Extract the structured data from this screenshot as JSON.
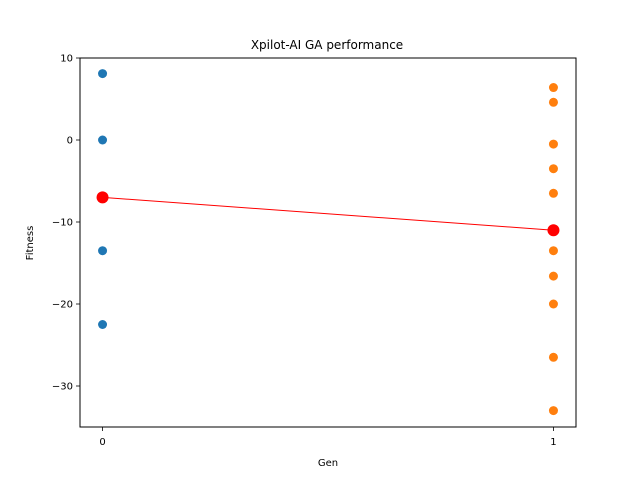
{
  "chart_data": {
    "type": "scatter",
    "title": "Xpilot-AI GA performance",
    "xlabel": "Gen",
    "ylabel": "Fitness",
    "xlim": [
      -0.05,
      1.05
    ],
    "ylim": [
      -35,
      10
    ],
    "x_ticks": [
      0,
      1
    ],
    "x_tick_labels": [
      "0",
      "1"
    ],
    "y_ticks": [
      10,
      0,
      -10,
      -20,
      -30
    ],
    "y_tick_labels": [
      "10",
      "0",
      "−10",
      "−20",
      "−30"
    ],
    "grid": false,
    "series": [
      {
        "color": "#1f77b4",
        "x": [
          0,
          0,
          0,
          0,
          0
        ],
        "y": [
          8.1,
          0.0,
          -7.0,
          -13.5,
          -22.5
        ]
      },
      {
        "color": "#ff7f0e",
        "x": [
          1,
          1,
          1,
          1,
          1,
          1,
          1,
          1,
          1,
          1,
          1
        ],
        "y": [
          6.4,
          4.6,
          -0.5,
          -3.5,
          -6.5,
          -11.0,
          -13.5,
          -16.6,
          -20.0,
          -26.5,
          -33.0
        ]
      }
    ],
    "mean_line": {
      "color": "#ff0000",
      "x": [
        0,
        1
      ],
      "y": [
        -7.0,
        -11.0
      ]
    }
  }
}
